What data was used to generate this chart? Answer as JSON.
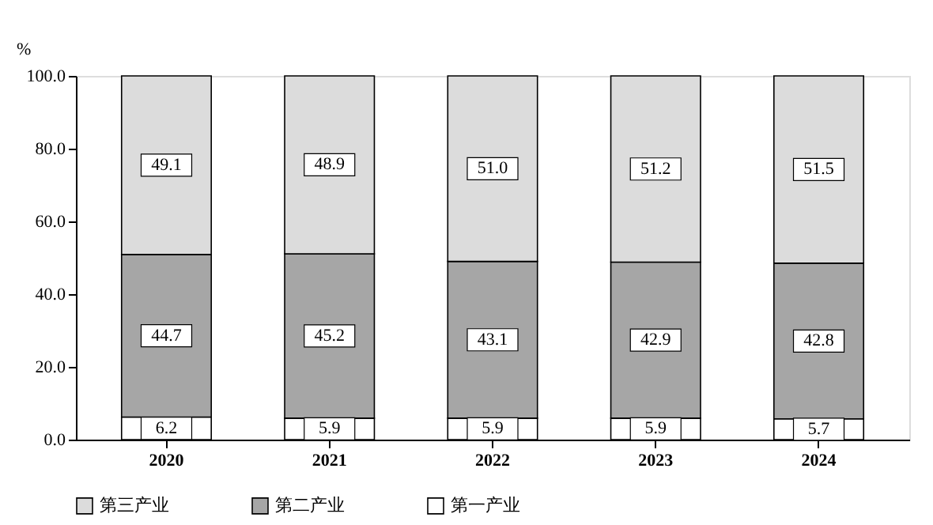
{
  "chart_data": {
    "type": "bar",
    "stacked": true,
    "ylabel": "%",
    "categories": [
      "2020",
      "2021",
      "2022",
      "2023",
      "2024"
    ],
    "series": [
      {
        "name": "第一产业",
        "color": "#ffffff",
        "values": [
          6.2,
          5.9,
          5.9,
          5.9,
          5.7
        ],
        "value_labels": [
          "6.2",
          "5.9",
          "5.9",
          "5.9",
          "5.7"
        ]
      },
      {
        "name": "第二产业",
        "color": "#a6a6a6",
        "values": [
          44.7,
          45.2,
          43.1,
          42.9,
          42.8
        ],
        "value_labels": [
          "44.7",
          "45.2",
          "43.1",
          "42.9",
          "42.8"
        ]
      },
      {
        "name": "第三产业",
        "color": "#dcdcdc",
        "values": [
          49.1,
          48.9,
          51.0,
          51.2,
          51.5
        ],
        "value_labels": [
          "49.1",
          "48.9",
          "51.0",
          "51.2",
          "51.5"
        ]
      }
    ],
    "ylim": [
      0,
      100
    ],
    "yticks": [
      {
        "value": 0,
        "label": "0.0"
      },
      {
        "value": 20,
        "label": "20.0"
      },
      {
        "value": 40,
        "label": "40.0"
      },
      {
        "value": 60,
        "label": "60.0"
      },
      {
        "value": 80,
        "label": "80.0"
      },
      {
        "value": 100,
        "label": "100.0"
      }
    ],
    "grid": false,
    "legend": "bottom"
  }
}
